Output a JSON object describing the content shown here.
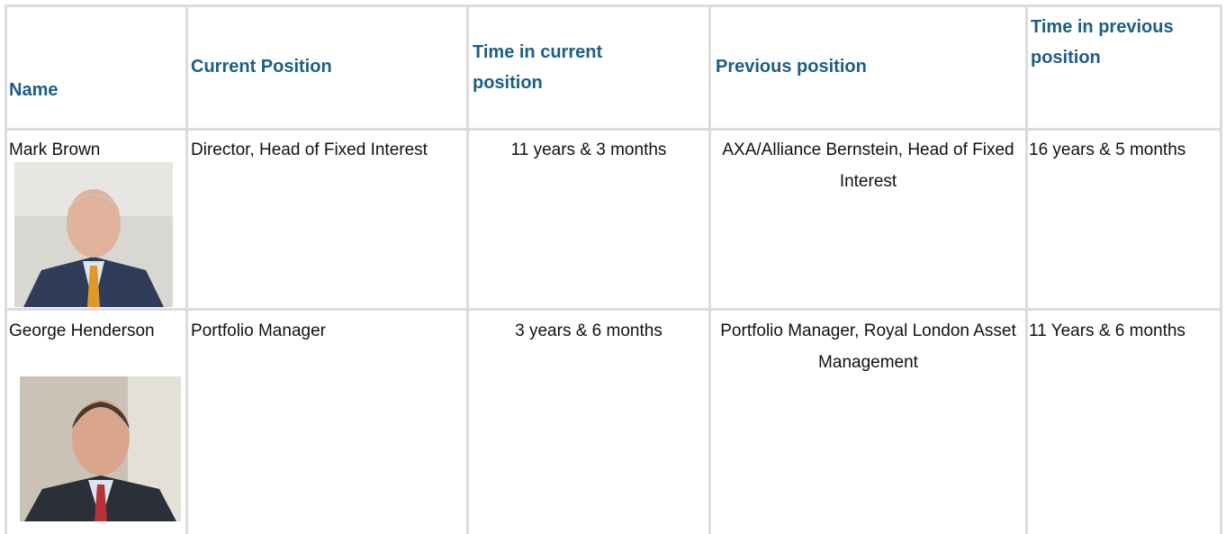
{
  "table": {
    "header": [
      "Name",
      "Current Position",
      "Time in current position",
      "Previous position",
      "Time in previous position"
    ],
    "rows": [
      [
        "Mark Brown",
        "Director, Head of Fixed Interest",
        "11 years & 3 months",
        "AXA/Alliance Bernstein, Head of Fixed Interest",
        "16 years & 5 months"
      ],
      [
        "George Henderson",
        "Portfolio Manager",
        "3 years & 6 months",
        "Portfolio Manager, Royal London Asset Management",
        "11 Years & 6 months"
      ]
    ]
  }
}
